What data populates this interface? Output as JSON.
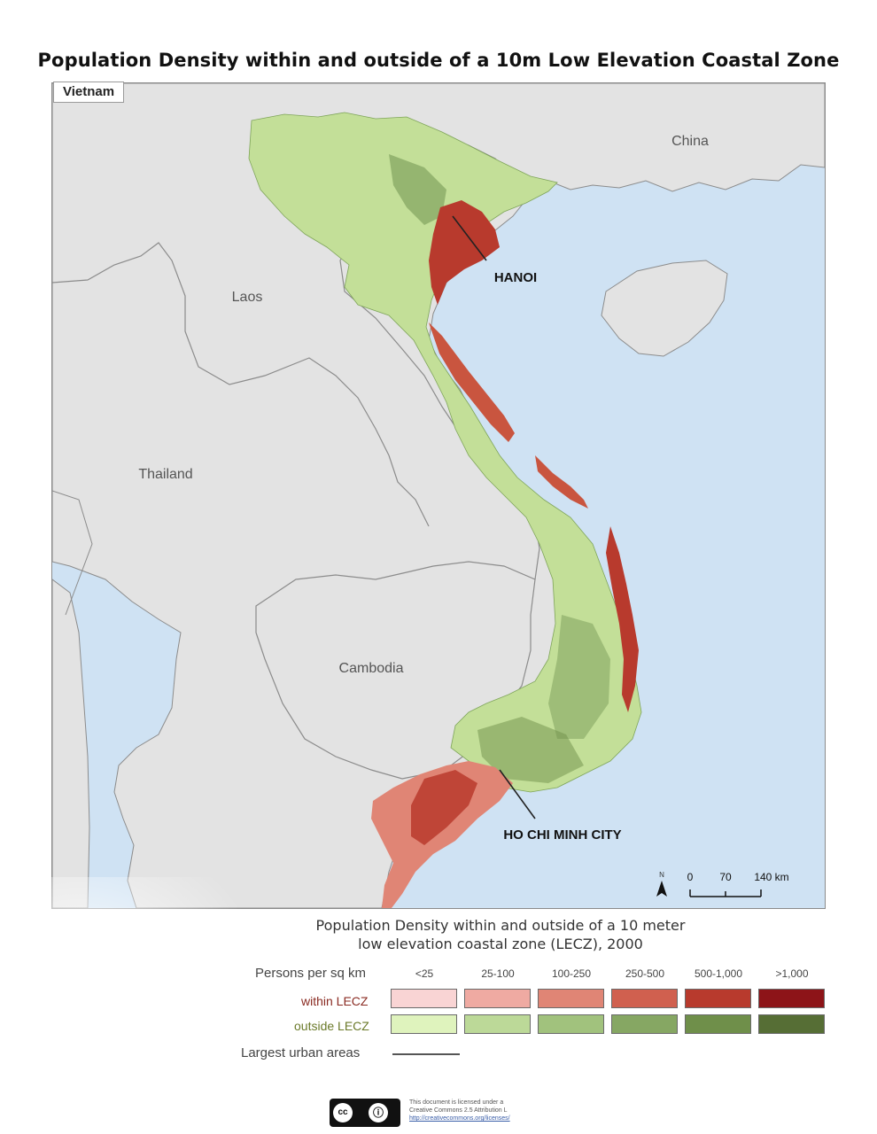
{
  "title": "Population Density within and outside of a 10m Low Elevation Coastal Zone",
  "map": {
    "tag": "Vietnam",
    "countries": [
      "China",
      "Laos",
      "Thailand",
      "Cambodia"
    ],
    "cities": [
      "HANOI",
      "HO CHI MINH CITY"
    ],
    "north_label": "N",
    "scale_labels": [
      "0",
      "70",
      "140 km"
    ]
  },
  "legend": {
    "title_line1": "Population Density within and outside of a 10 meter",
    "title_line2": "low elevation coastal zone (LECZ), 2000",
    "header": "Persons per sq km",
    "classes": [
      "<25",
      "25-100",
      "100-250",
      "250-500",
      "500-1,000",
      ">1,000"
    ],
    "within_label": "within LECZ",
    "outside_label": "outside LECZ",
    "urban_label": "Largest urban areas",
    "within_colors": [
      "#f9d4d4",
      "#efaaa2",
      "#e08575",
      "#d0604f",
      "#b83a2d",
      "#8d1418"
    ],
    "outside_colors": [
      "#dff3bd",
      "#bcd998",
      "#a1c27d",
      "#86a763",
      "#6f8f4a",
      "#566e35"
    ],
    "within_label_color": "#8a2b22",
    "outside_label_color": "#6b7a2a"
  },
  "license": {
    "line1": "This document is licensed under a",
    "line2": "Creative Commons 2.5 Attribution L",
    "line3": "http://creativecommons.org/licenses/"
  },
  "colors": {
    "sea": "#cfe2f3",
    "land": "#e3e3e3",
    "border": "#8c8c8c"
  }
}
